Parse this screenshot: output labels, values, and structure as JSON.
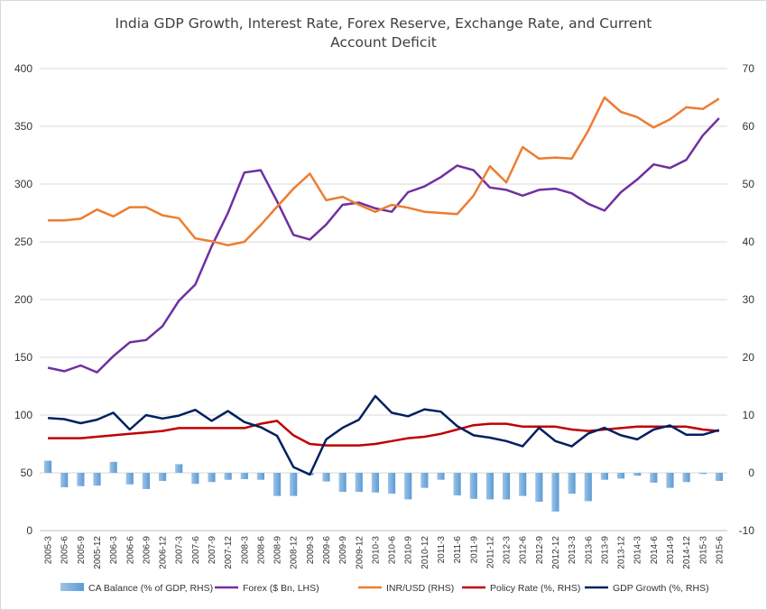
{
  "chart_data": {
    "type": "line",
    "title": [
      "India GDP Growth, Interest Rate, Forex Reserve, Exchange Rate, and Current",
      "Account Deficit"
    ],
    "left_axis": {
      "ylim": [
        0,
        400
      ],
      "ticks": [
        0,
        50,
        100,
        150,
        200,
        250,
        300,
        350,
        400
      ]
    },
    "right_axis": {
      "ylim": [
        -10,
        70
      ],
      "ticks": [
        -10,
        0,
        10,
        20,
        30,
        40,
        50,
        60,
        70
      ]
    },
    "grid": true,
    "legend_position": "bottom",
    "categories": [
      "2005-3",
      "2005-6",
      "2005-9",
      "2005-12",
      "2006-3",
      "2006-6",
      "2006-9",
      "2006-12",
      "2007-3",
      "2007-6",
      "2007-9",
      "2007-12",
      "2008-3",
      "2008-6",
      "2008-9",
      "2008-12",
      "2009-3",
      "2009-6",
      "2009-9",
      "2009-12",
      "2010-3",
      "2010-6",
      "2010-9",
      "2010-12",
      "2011-3",
      "2011-6",
      "2011-9",
      "2011-12",
      "2012-3",
      "2012-6",
      "2012-9",
      "2012-12",
      "2013-3",
      "2013-6",
      "2013-9",
      "2013-12",
      "2014-3",
      "2014-6",
      "2014-9",
      "2014-12",
      "2015-3",
      "2015-6"
    ],
    "series": [
      {
        "name": "CA Balance (% of GDP, RHS)",
        "type": "bar",
        "axis": "right",
        "color": "#5b9bd5",
        "values": [
          2.1,
          -2.5,
          -2.3,
          -2.2,
          1.9,
          -2.0,
          -2.8,
          -1.4,
          1.5,
          -1.9,
          -1.6,
          -1.2,
          -1.1,
          -1.2,
          -4.0,
          -4.0,
          -0.4,
          -1.5,
          -3.3,
          -3.3,
          -3.4,
          -3.6,
          -4.6,
          -2.6,
          -1.2,
          -3.9,
          -4.5,
          -4.6,
          -4.6,
          -4.0,
          -5.0,
          -6.7,
          -3.6,
          -4.9,
          -1.2,
          -1.0,
          -0.5,
          -1.7,
          -2.6,
          -1.6,
          -0.2,
          -1.4
        ]
      },
      {
        "name": "Forex ($ Bn, LHS)",
        "type": "line",
        "axis": "left",
        "color": "#7030a0",
        "values": [
          141,
          138,
          143,
          137,
          151,
          163,
          165,
          177,
          199,
          213,
          246,
          275,
          310,
          312,
          285,
          256,
          252,
          265,
          282,
          284,
          279,
          276,
          293,
          298,
          306,
          316,
          312,
          297,
          295,
          290,
          295,
          296,
          292,
          283,
          277,
          293,
          304,
          317,
          314,
          321,
          342,
          357
        ]
      },
      {
        "name": "INR/USD (RHS)",
        "type": "line",
        "axis": "right",
        "color": "#ed7d31",
        "values": [
          43.7,
          43.7,
          44.0,
          45.6,
          44.4,
          46.0,
          46.0,
          44.6,
          44.1,
          40.6,
          40.1,
          39.4,
          40.0,
          42.9,
          46.1,
          49.2,
          51.8,
          47.2,
          47.8,
          46.4,
          45.2,
          46.4,
          45.9,
          45.2,
          45.0,
          44.8,
          48.0,
          53.1,
          50.3,
          56.4,
          54.4,
          54.6,
          54.4,
          59.2,
          65.0,
          62.5,
          61.6,
          59.8,
          61.2,
          63.3,
          63.0,
          64.8
        ]
      },
      {
        "name": "Policy Rate (%, RHS)",
        "type": "line",
        "axis": "right",
        "color": "#c00000",
        "values": [
          6.0,
          6.0,
          6.0,
          6.25,
          6.5,
          6.75,
          7.0,
          7.25,
          7.75,
          7.75,
          7.75,
          7.75,
          7.75,
          8.5,
          9.0,
          6.5,
          5.0,
          4.75,
          4.75,
          4.75,
          5.0,
          5.5,
          6.0,
          6.25,
          6.75,
          7.5,
          8.25,
          8.5,
          8.5,
          8.0,
          8.0,
          8.0,
          7.5,
          7.25,
          7.5,
          7.75,
          8.0,
          8.0,
          8.0,
          8.0,
          7.5,
          7.25
        ]
      },
      {
        "name": "GDP Growth (%, RHS)",
        "type": "line",
        "axis": "right",
        "color": "#002060",
        "values": [
          9.5,
          9.3,
          8.6,
          9.2,
          10.4,
          7.5,
          10.0,
          9.4,
          9.9,
          10.9,
          9.0,
          10.7,
          8.8,
          7.9,
          6.4,
          1.0,
          -0.3,
          5.8,
          7.8,
          9.2,
          13.3,
          10.4,
          9.8,
          11.0,
          10.6,
          8.1,
          6.5,
          6.1,
          5.5,
          4.6,
          7.8,
          5.5,
          4.6,
          6.8,
          7.8,
          6.5,
          5.8,
          7.5,
          8.2,
          6.6,
          6.6,
          7.4
        ]
      }
    ]
  }
}
